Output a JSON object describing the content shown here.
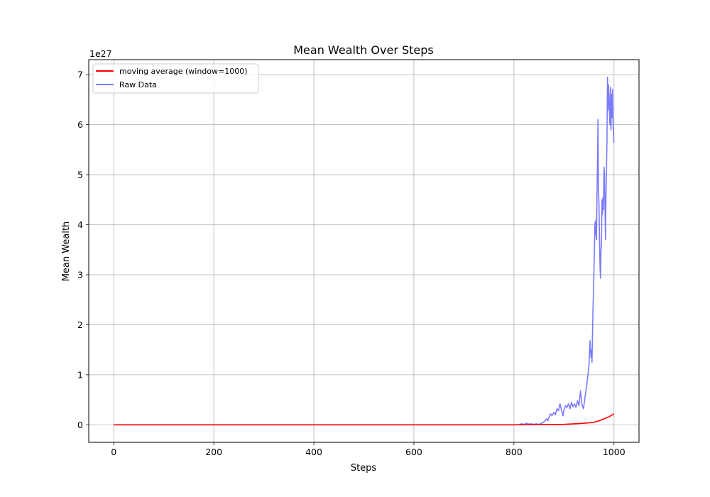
{
  "chart_data": {
    "type": "line",
    "title": "Mean Wealth Over Steps",
    "xlabel": "Steps",
    "ylabel": "Mean Wealth",
    "offset_text": "1e27",
    "xlim": [
      -50,
      1050
    ],
    "ylim": [
      -0.35,
      7.3
    ],
    "x_ticks": [
      0,
      200,
      400,
      600,
      800,
      1000
    ],
    "x_tick_labels": [
      "0",
      "200",
      "400",
      "600",
      "800",
      "1000"
    ],
    "y_ticks": [
      0,
      1,
      2,
      3,
      4,
      5,
      6,
      7
    ],
    "y_tick_labels": [
      "0",
      "1",
      "2",
      "3",
      "4",
      "5",
      "6",
      "7"
    ],
    "grid": true,
    "legend_position": "upper-left",
    "series": [
      {
        "name": "moving average (window=1000)",
        "color": "#ff0000",
        "x": [
          0,
          800,
          850,
          900,
          930,
          950,
          960,
          965,
          970,
          975,
          980,
          985,
          990,
          995,
          1000
        ],
        "y": [
          0,
          0,
          0.003,
          0.01,
          0.025,
          0.04,
          0.05,
          0.065,
          0.08,
          0.1,
          0.12,
          0.14,
          0.16,
          0.19,
          0.22
        ]
      },
      {
        "name": "Raw Data",
        "color": "#7b7bff",
        "x": [
          0,
          800,
          810,
          815,
          820,
          825,
          830,
          835,
          840,
          845,
          850,
          855,
          860,
          865,
          868,
          870,
          873,
          876,
          880,
          883,
          886,
          889,
          892,
          895,
          898,
          900,
          903,
          906,
          909,
          912,
          915,
          918,
          921,
          924,
          927,
          930,
          933,
          936,
          939,
          942,
          945,
          948,
          950,
          952,
          954,
          955,
          956,
          958,
          960,
          962,
          963,
          964,
          965,
          966,
          967,
          968,
          969,
          970,
          971,
          972,
          973,
          974,
          975,
          976,
          977,
          978,
          979,
          980,
          981,
          982,
          983,
          984,
          985,
          986,
          987,
          988,
          989,
          990,
          991,
          992,
          993,
          994,
          995,
          996,
          997,
          998,
          999,
          1000
        ],
        "y": [
          0,
          0,
          0.005,
          0.02,
          0.01,
          0.03,
          0.015,
          0.02,
          0.01,
          0.02,
          0.01,
          0.03,
          0.06,
          0.12,
          0.08,
          0.15,
          0.22,
          0.18,
          0.25,
          0.2,
          0.32,
          0.28,
          0.42,
          0.3,
          0.18,
          0.3,
          0.38,
          0.35,
          0.42,
          0.32,
          0.45,
          0.36,
          0.42,
          0.35,
          0.48,
          0.38,
          0.68,
          0.4,
          0.32,
          0.55,
          0.75,
          1.0,
          1.2,
          1.68,
          1.35,
          1.5,
          1.25,
          2.3,
          3.1,
          4.05,
          3.8,
          4.1,
          3.7,
          4.6,
          5.2,
          6.1,
          4.7,
          4.4,
          3.8,
          3.2,
          2.93,
          3.5,
          3.6,
          4.5,
          4.2,
          4.55,
          4.3,
          5.15,
          5.0,
          4.4,
          3.7,
          4.6,
          5.1,
          5.7,
          6.95,
          6.3,
          6.8,
          6.6,
          6.2,
          6.0,
          6.75,
          5.9,
          6.6,
          6.15,
          6.7,
          6.1,
          5.8,
          5.64
        ]
      }
    ]
  }
}
